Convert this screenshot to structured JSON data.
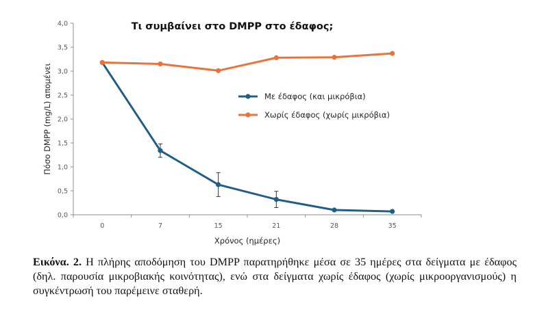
{
  "chart_data": {
    "type": "line",
    "title": "Τι συμβαίνει στο DMPP στο έδαφος;",
    "xlabel": "Χρόνος (ημέρες)",
    "ylabel": "Πόσο DMPP (mg/L) απομένει",
    "categories": [
      "0",
      "7",
      "15",
      "21",
      "28",
      "35"
    ],
    "x": [
      0,
      7,
      15,
      21,
      28,
      35
    ],
    "ylim": [
      0,
      4
    ],
    "yticks": [
      "0,0",
      "0,5",
      "1,0",
      "1,5",
      "2,0",
      "2,5",
      "3,0",
      "3,5",
      "4,0"
    ],
    "grid": false,
    "legend_position": "center-right",
    "series": [
      {
        "name": "Με έδαφος (και μικρόβια)",
        "color": "#1f5f85",
        "values": [
          3.18,
          1.34,
          0.63,
          0.32,
          0.1,
          0.07
        ],
        "error": [
          0,
          0.14,
          0.25,
          0.17,
          0,
          0
        ]
      },
      {
        "name": "Χωρίς έδαφος (χωρίς μικρόβια)",
        "color": "#e8743b",
        "values": [
          3.18,
          3.15,
          3.01,
          3.28,
          3.29,
          3.37
        ],
        "error": [
          0,
          0,
          0,
          0,
          0,
          0
        ]
      }
    ]
  },
  "caption": {
    "label": "Εικόνα. 2.",
    "text": " Η πλήρης αποδόμηση του DMPP παρατηρήθηκε μέσα σε 35 ημέρες στα δείγματα με έδαφος (δηλ. παρουσία μικροβιακής κοινότητας), ενώ στα δείγματα χωρίς έδαφος (χωρίς μικροοργανισμούς) η συγκέντρωσή του παρέμεινε σταθερή."
  }
}
